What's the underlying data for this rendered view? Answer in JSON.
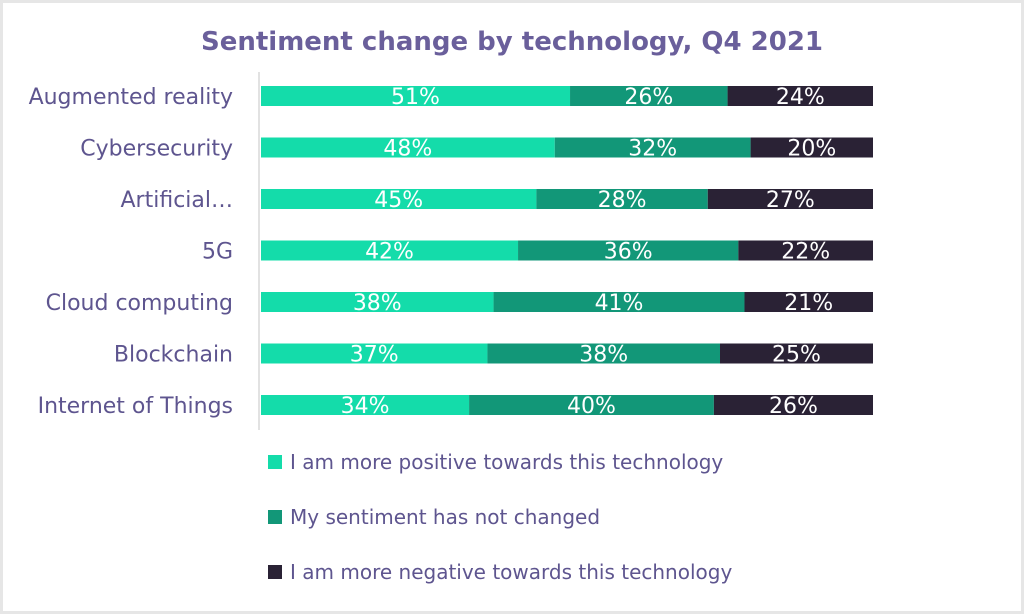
{
  "chart_data": {
    "type": "bar",
    "orientation": "horizontal",
    "stacked": true,
    "title": "Sentiment change by technology, Q4 2021",
    "xlabel": "",
    "ylabel": "",
    "xlim": [
      0,
      100
    ],
    "categories": [
      "Augmented reality",
      "Cybersecurity",
      "Artificial…",
      "5G",
      "Cloud computing",
      "Blockchain",
      "Internet of Things"
    ],
    "series": [
      {
        "name": "I am more positive towards this technology",
        "color": "#14dcaa",
        "values": [
          51,
          48,
          45,
          42,
          38,
          37,
          34
        ],
        "labels": [
          "51%",
          "48%",
          "45%",
          "42%",
          "38%",
          "37%",
          "34%"
        ]
      },
      {
        "name": "My sentiment has not changed",
        "color": "#129778",
        "values": [
          26,
          32,
          28,
          36,
          41,
          38,
          40
        ],
        "labels": [
          "26%",
          "32%",
          "28%",
          "36%",
          "41%",
          "38%",
          "40%"
        ]
      },
      {
        "name": "I am more negative towards this technology",
        "color": "#2a2235",
        "values": [
          24,
          20,
          27,
          22,
          21,
          25,
          26
        ],
        "labels": [
          "24%",
          "20%",
          "27%",
          "22%",
          "21%",
          "25%",
          "26%"
        ]
      }
    ],
    "legend_position": "bottom"
  }
}
